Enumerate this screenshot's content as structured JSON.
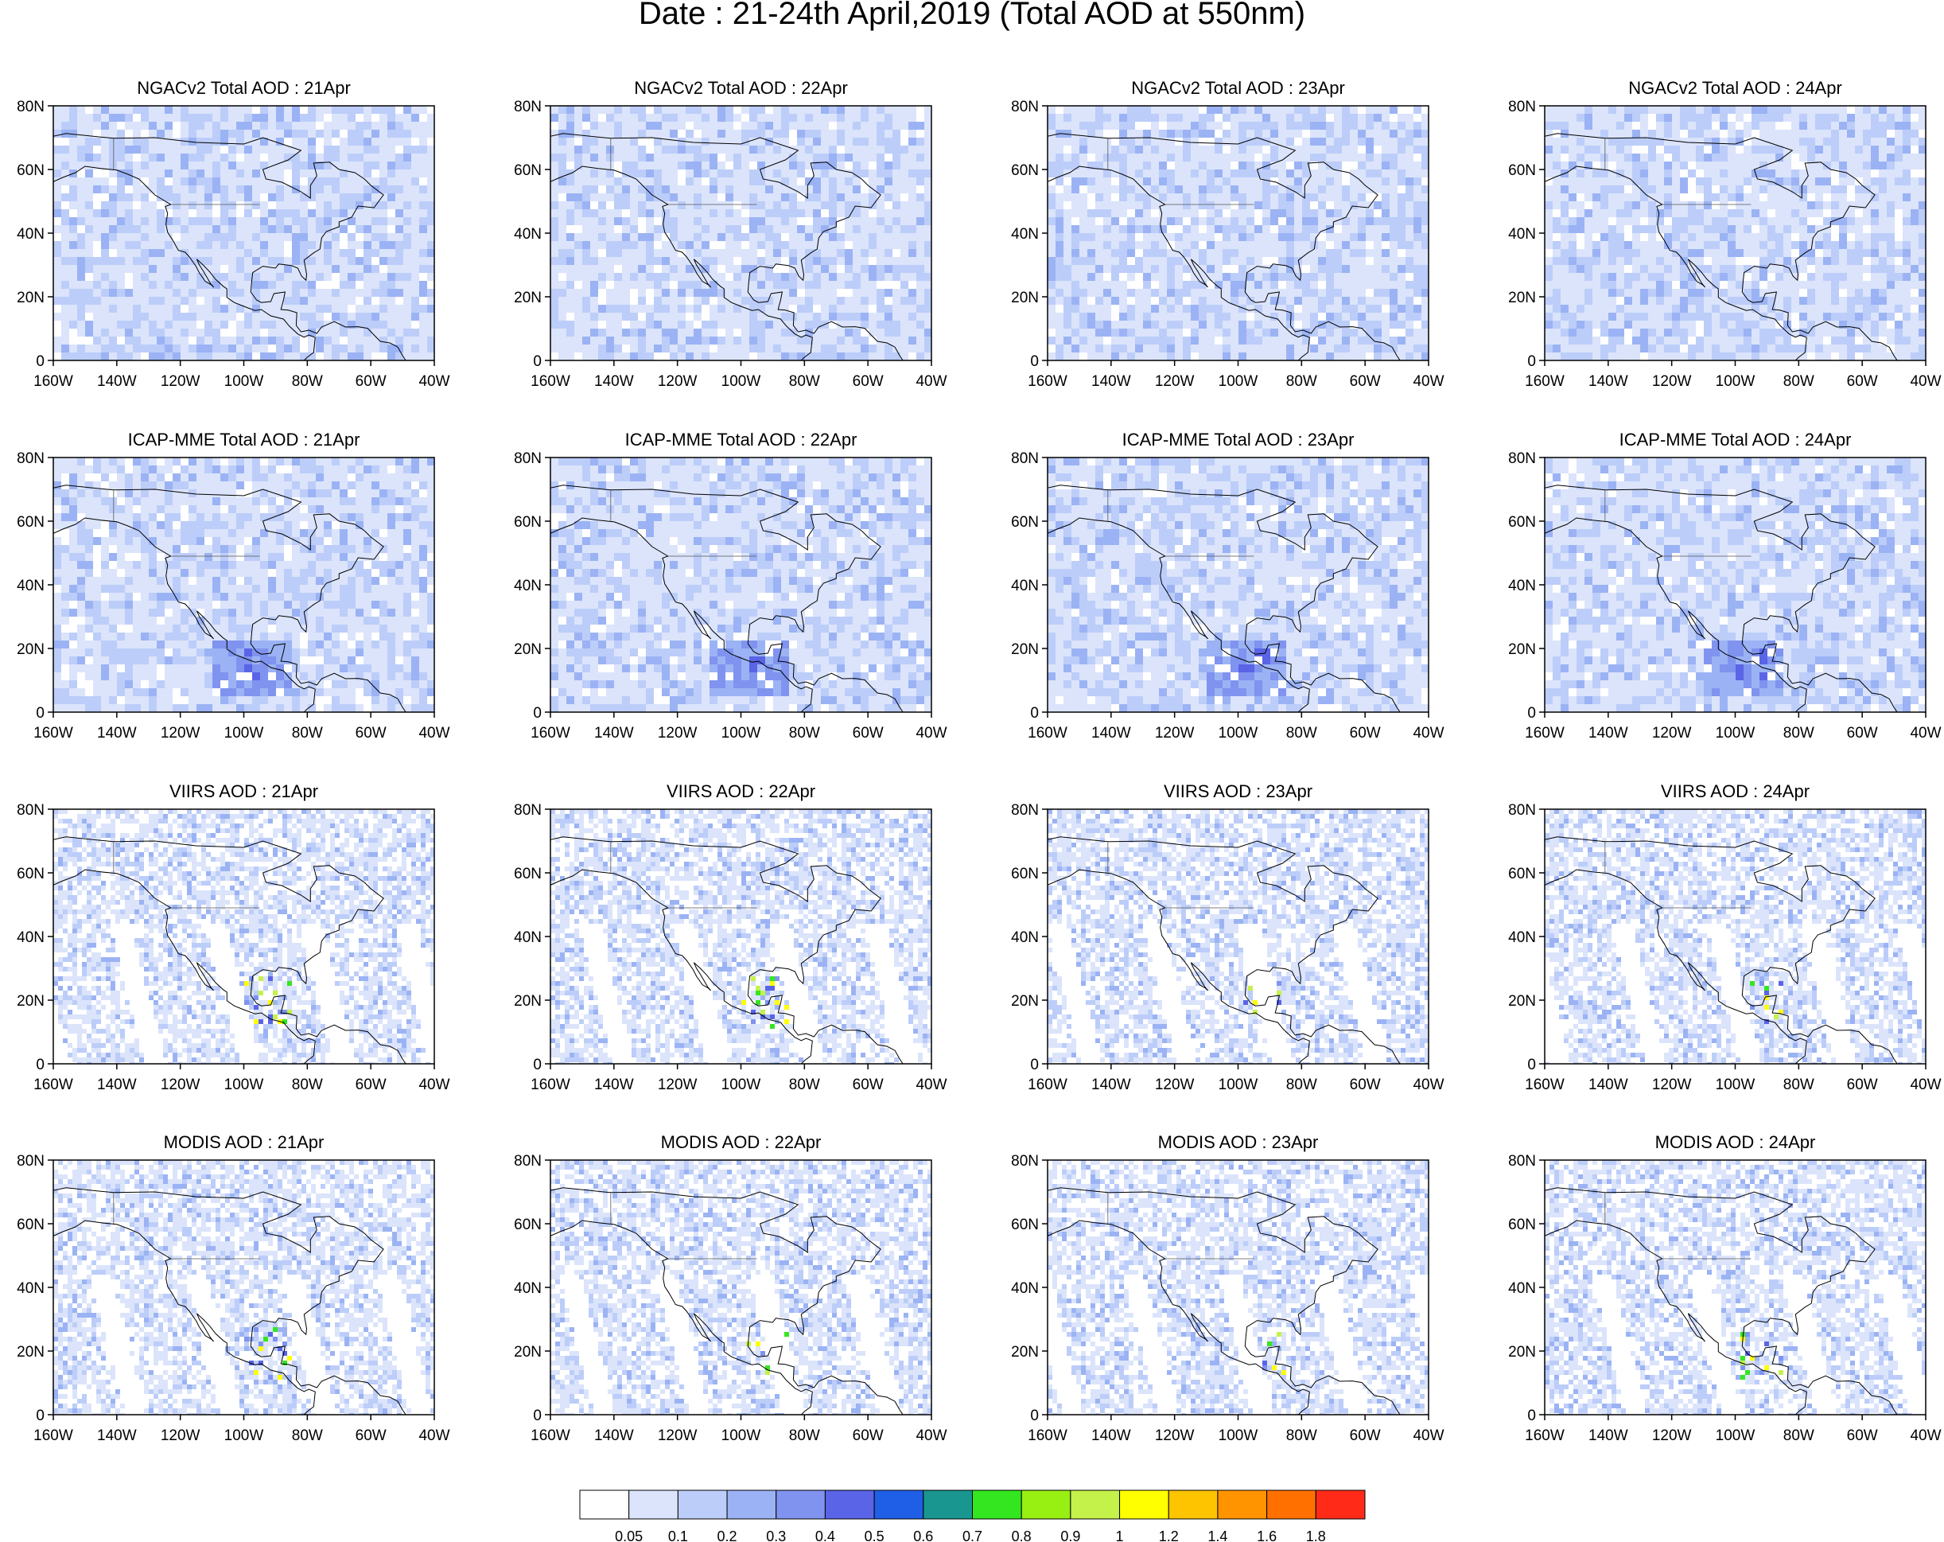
{
  "figure": {
    "title": "Date : 21-24th April,2019 (Total AOD at 550nm)"
  },
  "axes": {
    "lat_labels": [
      "80N",
      "60N",
      "40N",
      "20N",
      "0"
    ],
    "lon_labels": [
      "160W",
      "140W",
      "120W",
      "100W",
      "80W",
      "60W",
      "40W"
    ],
    "lat_range": [
      0,
      80
    ],
    "lon_range": [
      -160,
      -40
    ]
  },
  "panels": [
    {
      "title": "NGACv2 Total AOD : 21Apr",
      "product": "NGACv2",
      "day": "21Apr"
    },
    {
      "title": "NGACv2 Total AOD : 22Apr",
      "product": "NGACv2",
      "day": "22Apr"
    },
    {
      "title": "NGACv2 Total AOD : 23Apr",
      "product": "NGACv2",
      "day": "23Apr"
    },
    {
      "title": "NGACv2 Total AOD : 24Apr",
      "product": "NGACv2",
      "day": "24Apr"
    },
    {
      "title": "ICAP-MME Total AOD : 21Apr",
      "product": "ICAP-MME",
      "day": "21Apr"
    },
    {
      "title": "ICAP-MME Total AOD : 22Apr",
      "product": "ICAP-MME",
      "day": "22Apr"
    },
    {
      "title": "ICAP-MME Total AOD : 23Apr",
      "product": "ICAP-MME",
      "day": "23Apr"
    },
    {
      "title": "ICAP-MME Total AOD : 24Apr",
      "product": "ICAP-MME",
      "day": "24Apr"
    },
    {
      "title": "VIIRS AOD : 21Apr",
      "product": "VIIRS",
      "day": "21Apr"
    },
    {
      "title": "VIIRS AOD : 22Apr",
      "product": "VIIRS",
      "day": "22Apr"
    },
    {
      "title": "VIIRS AOD : 23Apr",
      "product": "VIIRS",
      "day": "23Apr"
    },
    {
      "title": "VIIRS AOD : 24Apr",
      "product": "VIIRS",
      "day": "24Apr"
    },
    {
      "title": "MODIS AOD : 21Apr",
      "product": "MODIS",
      "day": "21Apr"
    },
    {
      "title": "MODIS AOD : 22Apr",
      "product": "MODIS",
      "day": "22Apr"
    },
    {
      "title": "MODIS AOD : 23Apr",
      "product": "MODIS",
      "day": "23Apr"
    },
    {
      "title": "MODIS AOD : 24Apr",
      "product": "MODIS",
      "day": "24Apr"
    }
  ],
  "colorbar": {
    "labels": [
      "0.05",
      "0.1",
      "0.2",
      "0.3",
      "0.4",
      "0.5",
      "0.6",
      "0.7",
      "0.8",
      "0.9",
      "1",
      "1.2",
      "1.4",
      "1.6",
      "1.8"
    ],
    "colors": [
      "#ffffff",
      "#dbe4fb",
      "#bccdf9",
      "#9bb3f4",
      "#7f93ef",
      "#5a64e6",
      "#1f5fe8",
      "#19968f",
      "#34e61f",
      "#98ef12",
      "#c4f24a",
      "#ffff00",
      "#ffc400",
      "#ff9400",
      "#ff7000",
      "#ff2a18"
    ]
  }
}
